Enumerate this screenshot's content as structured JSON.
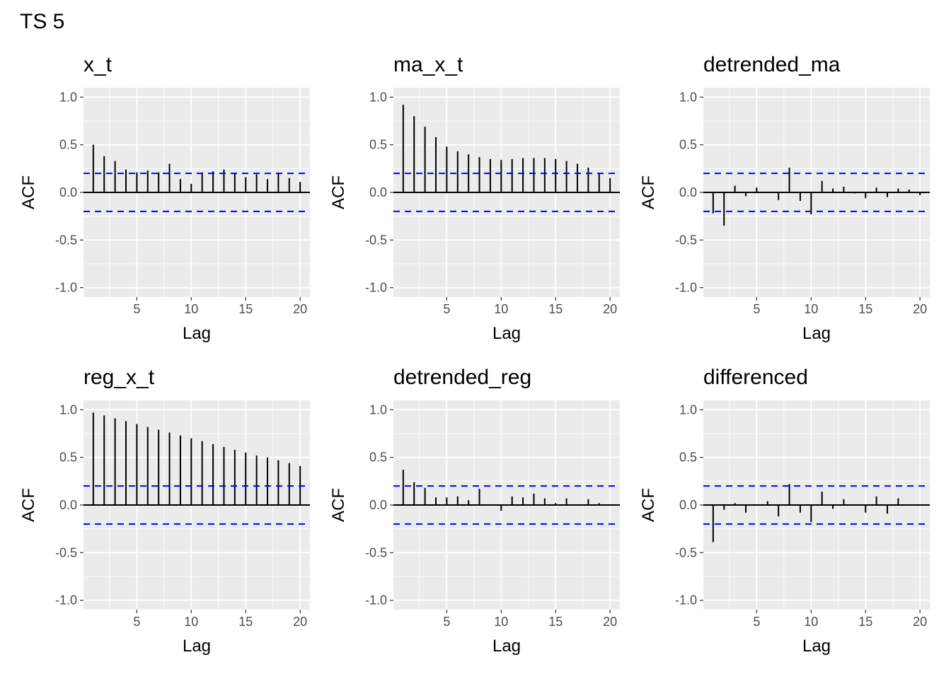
{
  "figure_title": "TS 5",
  "chart_data": [
    {
      "type": "bar",
      "title": "x_t",
      "xlabel": "Lag",
      "ylabel": "ACF",
      "ylim": [
        -1.0,
        1.0
      ],
      "yticks": [
        "1.0",
        "0.5",
        "0.0",
        "-0.5",
        "-1.0"
      ],
      "xticks": [
        "5",
        "10",
        "15",
        "20"
      ],
      "conf_limit": 0.2,
      "lags": [
        1,
        2,
        3,
        4,
        5,
        6,
        7,
        8,
        9,
        10,
        11,
        12,
        13,
        14,
        15,
        16,
        17,
        18,
        19,
        20
      ],
      "values": [
        0.5,
        0.38,
        0.33,
        0.24,
        0.21,
        0.23,
        0.21,
        0.3,
        0.14,
        0.09,
        0.21,
        0.22,
        0.24,
        0.2,
        0.16,
        0.19,
        0.14,
        0.2,
        0.15,
        0.11
      ]
    },
    {
      "type": "bar",
      "title": "ma_x_t",
      "xlabel": "Lag",
      "ylabel": "ACF",
      "ylim": [
        -1.0,
        1.0
      ],
      "yticks": [
        "1.0",
        "0.5",
        "0.0",
        "-0.5",
        "-1.0"
      ],
      "xticks": [
        "5",
        "10",
        "15",
        "20"
      ],
      "conf_limit": 0.2,
      "lags": [
        1,
        2,
        3,
        4,
        5,
        6,
        7,
        8,
        9,
        10,
        11,
        12,
        13,
        14,
        15,
        16,
        17,
        18,
        19,
        20
      ],
      "values": [
        0.92,
        0.8,
        0.69,
        0.58,
        0.48,
        0.43,
        0.4,
        0.37,
        0.35,
        0.34,
        0.35,
        0.36,
        0.36,
        0.36,
        0.35,
        0.33,
        0.3,
        0.26,
        0.2,
        0.15
      ]
    },
    {
      "type": "bar",
      "title": "detrended_ma",
      "xlabel": "Lag",
      "ylabel": "ACF",
      "ylim": [
        -1.0,
        1.0
      ],
      "yticks": [
        "1.0",
        "0.5",
        "0.0",
        "-0.5",
        "-1.0"
      ],
      "xticks": [
        "5",
        "10",
        "15",
        "20"
      ],
      "conf_limit": 0.2,
      "lags": [
        1,
        2,
        3,
        4,
        5,
        6,
        7,
        8,
        9,
        10,
        11,
        12,
        13,
        14,
        15,
        16,
        17,
        18,
        19,
        20
      ],
      "values": [
        -0.22,
        -0.35,
        0.07,
        -0.04,
        0.05,
        0.0,
        -0.08,
        0.26,
        -0.09,
        -0.23,
        0.12,
        0.04,
        0.06,
        -0.01,
        -0.06,
        0.05,
        -0.05,
        0.04,
        0.03,
        -0.03
      ]
    },
    {
      "type": "bar",
      "title": "reg_x_t",
      "xlabel": "Lag",
      "ylabel": "ACF",
      "ylim": [
        -1.0,
        1.0
      ],
      "yticks": [
        "1.0",
        "0.5",
        "0.0",
        "-0.5",
        "-1.0"
      ],
      "xticks": [
        "5",
        "10",
        "15",
        "20"
      ],
      "conf_limit": 0.2,
      "lags": [
        1,
        2,
        3,
        4,
        5,
        6,
        7,
        8,
        9,
        10,
        11,
        12,
        13,
        14,
        15,
        16,
        17,
        18,
        19,
        20
      ],
      "values": [
        0.97,
        0.94,
        0.91,
        0.88,
        0.85,
        0.82,
        0.79,
        0.76,
        0.73,
        0.7,
        0.67,
        0.64,
        0.61,
        0.58,
        0.55,
        0.52,
        0.5,
        0.47,
        0.44,
        0.41
      ]
    },
    {
      "type": "bar",
      "title": "detrended_reg",
      "xlabel": "Lag",
      "ylabel": "ACF",
      "ylim": [
        -1.0,
        1.0
      ],
      "yticks": [
        "1.0",
        "0.5",
        "0.0",
        "-0.5",
        "-1.0"
      ],
      "xticks": [
        "5",
        "10",
        "15",
        "20"
      ],
      "conf_limit": 0.2,
      "lags": [
        1,
        2,
        3,
        4,
        5,
        6,
        7,
        8,
        9,
        10,
        11,
        12,
        13,
        14,
        15,
        16,
        17,
        18,
        19,
        20
      ],
      "values": [
        0.37,
        0.24,
        0.18,
        0.08,
        0.08,
        0.09,
        0.05,
        0.17,
        0.0,
        -0.06,
        0.09,
        0.08,
        0.12,
        0.07,
        0.02,
        0.07,
        0.0,
        0.06,
        0.02,
        0.0
      ]
    },
    {
      "type": "bar",
      "title": "differenced",
      "xlabel": "Lag",
      "ylabel": "ACF",
      "ylim": [
        -1.0,
        1.0
      ],
      "yticks": [
        "1.0",
        "0.5",
        "0.0",
        "-0.5",
        "-1.0"
      ],
      "xticks": [
        "5",
        "10",
        "15",
        "20"
      ],
      "conf_limit": 0.2,
      "lags": [
        1,
        2,
        3,
        4,
        5,
        6,
        7,
        8,
        9,
        10,
        11,
        12,
        13,
        14,
        15,
        16,
        17,
        18,
        19,
        20
      ],
      "values": [
        -0.39,
        -0.05,
        0.02,
        -0.08,
        0.0,
        0.04,
        -0.12,
        0.22,
        -0.08,
        -0.18,
        0.14,
        -0.04,
        0.06,
        0.0,
        -0.08,
        0.09,
        -0.09,
        0.07,
        0.0,
        0.0
      ]
    }
  ],
  "colors": {
    "panel_bg": "#ebebeb",
    "grid": "#ffffff",
    "bar": "#000000",
    "conf_line": "#0000ff",
    "tick_text": "#4d4d4d"
  }
}
